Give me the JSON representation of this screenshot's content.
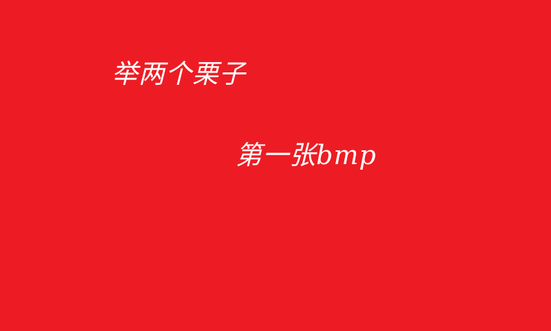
{
  "image": {
    "background_color": "#ED1C24",
    "text_color": "#FFFFFF",
    "lines": [
      "举两个栗子",
      "第一张bmp"
    ]
  }
}
